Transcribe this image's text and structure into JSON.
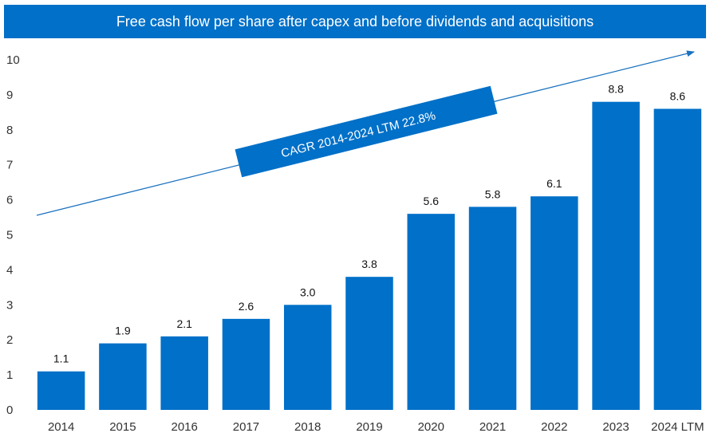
{
  "colors": {
    "bar": "#0070C8",
    "title_bg": "#0070C8",
    "arrow": "#1a72c0",
    "cagr_bg": "#0070C8"
  },
  "chart_data": {
    "type": "bar",
    "title": "Free cash flow per share after capex and before dividends and acquisitions",
    "xlabel": "",
    "ylabel": "",
    "ylim": [
      0,
      10
    ],
    "yticks": [
      "0",
      "1",
      "2",
      "3",
      "4",
      "5",
      "6",
      "7",
      "8",
      "9",
      "10"
    ],
    "grid": false,
    "categories": [
      "2014",
      "2015",
      "2016",
      "2017",
      "2018",
      "2019",
      "2020",
      "2021",
      "2022",
      "2023",
      "2024 LTM"
    ],
    "values": [
      1.1,
      1.9,
      2.1,
      2.6,
      3.0,
      3.8,
      5.6,
      5.8,
      6.1,
      8.8,
      8.6
    ],
    "data_labels": [
      "1.1",
      "1.9",
      "2.1",
      "2.6",
      "3.0",
      "3.8",
      "5.6",
      "5.8",
      "6.1",
      "8.8",
      "8.6"
    ],
    "annotations": [
      {
        "text": "CAGR 2014-2024 LTM 22.8%",
        "type": "trend-arrow",
        "from_category": "2014",
        "to_category": "2024 LTM"
      }
    ]
  }
}
